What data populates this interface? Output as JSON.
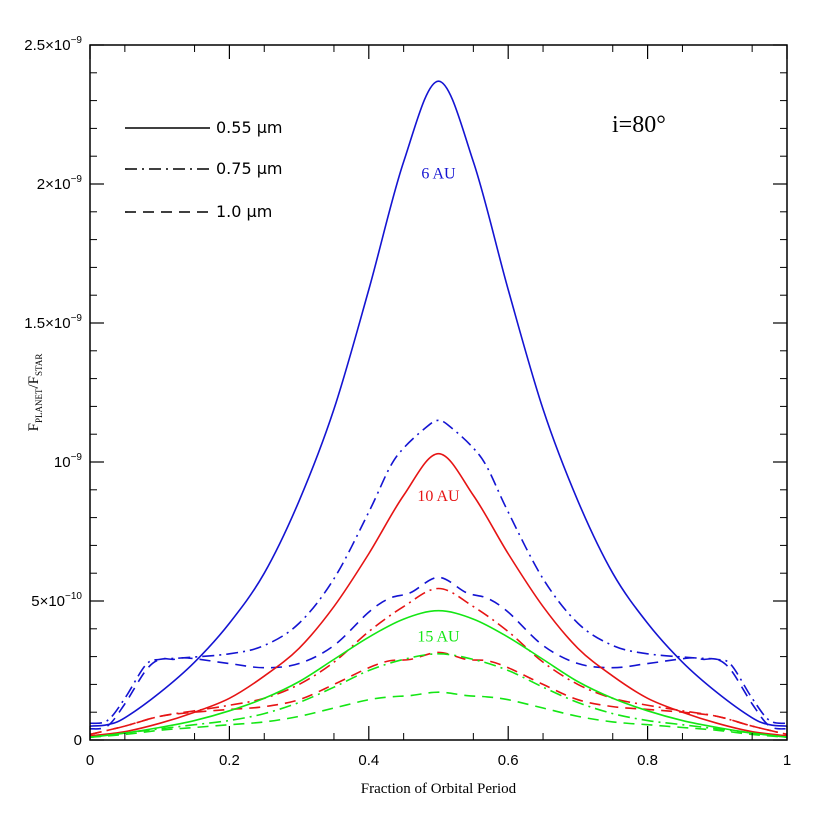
{
  "chart_data": {
    "type": "line",
    "xlabel": "Fraction of Orbital Period",
    "ylabel_main": "F",
    "ylabel_sub1": "PLANET",
    "ylabel_sep": "/F",
    "ylabel_sub2": "STAR",
    "annotation": "i=80°",
    "xlim": [
      0,
      1
    ],
    "ylim": [
      0,
      2.5e-09
    ],
    "x_ticks": [
      {
        "value": 0,
        "label": "0"
      },
      {
        "value": 0.2,
        "label": "0.2"
      },
      {
        "value": 0.4,
        "label": "0.4"
      },
      {
        "value": 0.6,
        "label": "0.6"
      },
      {
        "value": 0.8,
        "label": "0.8"
      },
      {
        "value": 1,
        "label": "1"
      }
    ],
    "y_ticks": [
      {
        "value": 0,
        "label": "0"
      },
      {
        "value": 5e-10,
        "label": "5×10",
        "exp": "−10"
      },
      {
        "value": 1e-09,
        "label": "10",
        "exp": "−9"
      },
      {
        "value": 1.5e-09,
        "label": "1.5×10",
        "exp": "−9"
      },
      {
        "value": 2e-09,
        "label": "2×10",
        "exp": "−9"
      },
      {
        "value": 2.5e-09,
        "label": "2.5×10",
        "exp": "−9"
      }
    ],
    "legend": [
      {
        "label": "0.55 μm",
        "style": "solid"
      },
      {
        "label": "0.75 μm",
        "style": "dashdot"
      },
      {
        "label": "1.0 μm",
        "style": "dashed"
      }
    ],
    "colors": {
      "6 AU": "#1414d2",
      "10 AU": "#e61414",
      "15 AU": "#14e614"
    },
    "series_labels": [
      {
        "text": "6 AU",
        "color": "#1414d2",
        "x": 0.5,
        "y": 2.02e-09
      },
      {
        "text": "10 AU",
        "color": "#e61414",
        "x": 0.5,
        "y": 8.6e-10
      },
      {
        "text": "15 AU",
        "color": "#14e614",
        "x": 0.5,
        "y": 3.55e-10
      }
    ],
    "series": [
      {
        "group": "6 AU",
        "style": "solid",
        "color": "#1414d2",
        "points": [
          [
            0,
            5e-11
          ],
          [
            0.025,
            5.5e-11
          ],
          [
            0.05,
            8e-11
          ],
          [
            0.1,
            1.7e-10
          ],
          [
            0.15,
            2.8e-10
          ],
          [
            0.2,
            4.2e-10
          ],
          [
            0.25,
            6e-10
          ],
          [
            0.3,
            8.6e-10
          ],
          [
            0.35,
            1.19e-09
          ],
          [
            0.4,
            1.62e-09
          ],
          [
            0.45,
            2.08e-09
          ],
          [
            0.5,
            2.37e-09
          ],
          [
            0.55,
            2.08e-09
          ],
          [
            0.6,
            1.62e-09
          ],
          [
            0.65,
            1.19e-09
          ],
          [
            0.7,
            8.6e-10
          ],
          [
            0.75,
            6e-10
          ],
          [
            0.8,
            4.2e-10
          ],
          [
            0.85,
            2.8e-10
          ],
          [
            0.9,
            1.7e-10
          ],
          [
            0.95,
            8e-11
          ],
          [
            0.975,
            5.5e-11
          ],
          [
            1,
            5e-11
          ]
        ]
      },
      {
        "group": "6 AU",
        "style": "dashdot",
        "color": "#1414d2",
        "points": [
          [
            0,
            6e-11
          ],
          [
            0.025,
            7e-11
          ],
          [
            0.05,
            1.5e-10
          ],
          [
            0.08,
            2.7e-10
          ],
          [
            0.1,
            2.9e-10
          ],
          [
            0.13,
            2.95e-10
          ],
          [
            0.2,
            3.1e-10
          ],
          [
            0.25,
            3.4e-10
          ],
          [
            0.3,
            4.2e-10
          ],
          [
            0.35,
            5.8e-10
          ],
          [
            0.4,
            8.2e-10
          ],
          [
            0.43,
            9.8e-10
          ],
          [
            0.45,
            1.05e-09
          ],
          [
            0.48,
            1.12e-09
          ],
          [
            0.5,
            1.15e-09
          ],
          [
            0.52,
            1.12e-09
          ],
          [
            0.55,
            1.05e-09
          ],
          [
            0.57,
            9.8e-10
          ],
          [
            0.6,
            8.2e-10
          ],
          [
            0.65,
            5.8e-10
          ],
          [
            0.7,
            4.2e-10
          ],
          [
            0.75,
            3.4e-10
          ],
          [
            0.8,
            3.1e-10
          ],
          [
            0.87,
            2.95e-10
          ],
          [
            0.9,
            2.9e-10
          ],
          [
            0.92,
            2.7e-10
          ],
          [
            0.95,
            1.5e-10
          ],
          [
            0.975,
            7e-11
          ],
          [
            1,
            6e-11
          ]
        ]
      },
      {
        "group": "6 AU",
        "style": "dashed",
        "color": "#1414d2",
        "points": [
          [
            0,
            4e-11
          ],
          [
            0.025,
            5e-11
          ],
          [
            0.05,
            1.3e-10
          ],
          [
            0.08,
            2.5e-10
          ],
          [
            0.1,
            2.9e-10
          ],
          [
            0.12,
            2.9e-10
          ],
          [
            0.14,
            2.95e-10
          ],
          [
            0.2,
            2.75e-10
          ],
          [
            0.25,
            2.6e-10
          ],
          [
            0.3,
            2.75e-10
          ],
          [
            0.35,
            3.4e-10
          ],
          [
            0.4,
            4.6e-10
          ],
          [
            0.43,
            5.1e-10
          ],
          [
            0.46,
            5.3e-10
          ],
          [
            0.5,
            5.85e-10
          ],
          [
            0.54,
            5.3e-10
          ],
          [
            0.57,
            5.1e-10
          ],
          [
            0.6,
            4.6e-10
          ],
          [
            0.65,
            3.4e-10
          ],
          [
            0.7,
            2.75e-10
          ],
          [
            0.75,
            2.6e-10
          ],
          [
            0.8,
            2.75e-10
          ],
          [
            0.86,
            2.95e-10
          ],
          [
            0.88,
            2.9e-10
          ],
          [
            0.9,
            2.9e-10
          ],
          [
            0.92,
            2.5e-10
          ],
          [
            0.95,
            1.3e-10
          ],
          [
            0.975,
            5e-11
          ],
          [
            1,
            4e-11
          ]
        ]
      },
      {
        "group": "10 AU",
        "style": "solid",
        "color": "#e61414",
        "points": [
          [
            0,
            1.5e-11
          ],
          [
            0.05,
            3e-11
          ],
          [
            0.1,
            6e-11
          ],
          [
            0.15,
            1e-10
          ],
          [
            0.2,
            1.5e-10
          ],
          [
            0.25,
            2.3e-10
          ],
          [
            0.3,
            3.3e-10
          ],
          [
            0.35,
            4.8e-10
          ],
          [
            0.4,
            6.7e-10
          ],
          [
            0.45,
            8.8e-10
          ],
          [
            0.5,
            1.03e-09
          ],
          [
            0.55,
            8.8e-10
          ],
          [
            0.6,
            6.7e-10
          ],
          [
            0.65,
            4.8e-10
          ],
          [
            0.7,
            3.3e-10
          ],
          [
            0.75,
            2.3e-10
          ],
          [
            0.8,
            1.5e-10
          ],
          [
            0.85,
            1e-10
          ],
          [
            0.9,
            6e-11
          ],
          [
            0.95,
            3e-11
          ],
          [
            1,
            1.5e-11
          ]
        ]
      },
      {
        "group": "10 AU",
        "style": "dashdot",
        "color": "#e61414",
        "points": [
          [
            0,
            2e-11
          ],
          [
            0.05,
            5e-11
          ],
          [
            0.1,
            8.5e-11
          ],
          [
            0.15,
            1.05e-10
          ],
          [
            0.2,
            1.25e-10
          ],
          [
            0.25,
            1.5e-10
          ],
          [
            0.3,
            2e-10
          ],
          [
            0.35,
            2.8e-10
          ],
          [
            0.4,
            3.9e-10
          ],
          [
            0.45,
            4.8e-10
          ],
          [
            0.5,
            5.45e-10
          ],
          [
            0.55,
            4.8e-10
          ],
          [
            0.6,
            3.9e-10
          ],
          [
            0.65,
            2.8e-10
          ],
          [
            0.7,
            2e-10
          ],
          [
            0.75,
            1.5e-10
          ],
          [
            0.8,
            1.25e-10
          ],
          [
            0.85,
            1.05e-10
          ],
          [
            0.9,
            8.5e-11
          ],
          [
            0.95,
            5e-11
          ],
          [
            1,
            2e-11
          ]
        ]
      },
      {
        "group": "10 AU",
        "style": "dashed",
        "color": "#e61414",
        "points": [
          [
            0,
            2e-11
          ],
          [
            0.05,
            5e-11
          ],
          [
            0.1,
            8.5e-11
          ],
          [
            0.15,
            1e-10
          ],
          [
            0.2,
            1.1e-10
          ],
          [
            0.25,
            1.2e-10
          ],
          [
            0.3,
            1.45e-10
          ],
          [
            0.35,
            2e-10
          ],
          [
            0.4,
            2.6e-10
          ],
          [
            0.43,
            2.85e-10
          ],
          [
            0.46,
            2.9e-10
          ],
          [
            0.5,
            3.15e-10
          ],
          [
            0.54,
            2.9e-10
          ],
          [
            0.57,
            2.85e-10
          ],
          [
            0.6,
            2.6e-10
          ],
          [
            0.65,
            2e-10
          ],
          [
            0.7,
            1.45e-10
          ],
          [
            0.75,
            1.2e-10
          ],
          [
            0.8,
            1.1e-10
          ],
          [
            0.85,
            1e-10
          ],
          [
            0.9,
            8.5e-11
          ],
          [
            0.95,
            5e-11
          ],
          [
            1,
            2e-11
          ]
        ]
      },
      {
        "group": "15 AU",
        "style": "solid",
        "color": "#14e614",
        "points": [
          [
            0,
            1e-11
          ],
          [
            0.05,
            2.5e-11
          ],
          [
            0.1,
            4.5e-11
          ],
          [
            0.15,
            7e-11
          ],
          [
            0.2,
            1.05e-10
          ],
          [
            0.25,
            1.5e-10
          ],
          [
            0.3,
            2.1e-10
          ],
          [
            0.35,
            2.9e-10
          ],
          [
            0.4,
            3.7e-10
          ],
          [
            0.45,
            4.35e-10
          ],
          [
            0.5,
            4.65e-10
          ],
          [
            0.55,
            4.35e-10
          ],
          [
            0.6,
            3.7e-10
          ],
          [
            0.65,
            2.9e-10
          ],
          [
            0.7,
            2.1e-10
          ],
          [
            0.75,
            1.5e-10
          ],
          [
            0.8,
            1.05e-10
          ],
          [
            0.85,
            7e-11
          ],
          [
            0.9,
            4.5e-11
          ],
          [
            0.95,
            2.5e-11
          ],
          [
            1,
            1e-11
          ]
        ]
      },
      {
        "group": "15 AU",
        "style": "dashdot",
        "color": "#14e614",
        "points": [
          [
            0,
            1e-11
          ],
          [
            0.05,
            2.5e-11
          ],
          [
            0.1,
            4e-11
          ],
          [
            0.15,
            5.5e-11
          ],
          [
            0.2,
            7e-11
          ],
          [
            0.25,
            9.5e-11
          ],
          [
            0.3,
            1.35e-10
          ],
          [
            0.35,
            1.9e-10
          ],
          [
            0.4,
            2.5e-10
          ],
          [
            0.45,
            2.9e-10
          ],
          [
            0.5,
            3.1e-10
          ],
          [
            0.55,
            2.9e-10
          ],
          [
            0.6,
            2.5e-10
          ],
          [
            0.65,
            1.9e-10
          ],
          [
            0.7,
            1.35e-10
          ],
          [
            0.75,
            9.5e-11
          ],
          [
            0.8,
            7e-11
          ],
          [
            0.85,
            5.5e-11
          ],
          [
            0.9,
            4e-11
          ],
          [
            0.95,
            2.5e-11
          ],
          [
            1,
            1e-11
          ]
        ]
      },
      {
        "group": "15 AU",
        "style": "dashed",
        "color": "#14e614",
        "points": [
          [
            0,
            1e-11
          ],
          [
            0.05,
            2e-11
          ],
          [
            0.1,
            3.5e-11
          ],
          [
            0.15,
            4.5e-11
          ],
          [
            0.2,
            5.5e-11
          ],
          [
            0.25,
            6.5e-11
          ],
          [
            0.3,
            8.5e-11
          ],
          [
            0.35,
            1.15e-10
          ],
          [
            0.4,
            1.45e-10
          ],
          [
            0.43,
            1.55e-10
          ],
          [
            0.46,
            1.6e-10
          ],
          [
            0.5,
            1.72e-10
          ],
          [
            0.54,
            1.6e-10
          ],
          [
            0.57,
            1.55e-10
          ],
          [
            0.6,
            1.45e-10
          ],
          [
            0.65,
            1.15e-10
          ],
          [
            0.7,
            8.5e-11
          ],
          [
            0.75,
            6.5e-11
          ],
          [
            0.8,
            5.5e-11
          ],
          [
            0.85,
            4.5e-11
          ],
          [
            0.9,
            3.5e-11
          ],
          [
            0.95,
            2e-11
          ],
          [
            1,
            1e-11
          ]
        ]
      }
    ]
  }
}
